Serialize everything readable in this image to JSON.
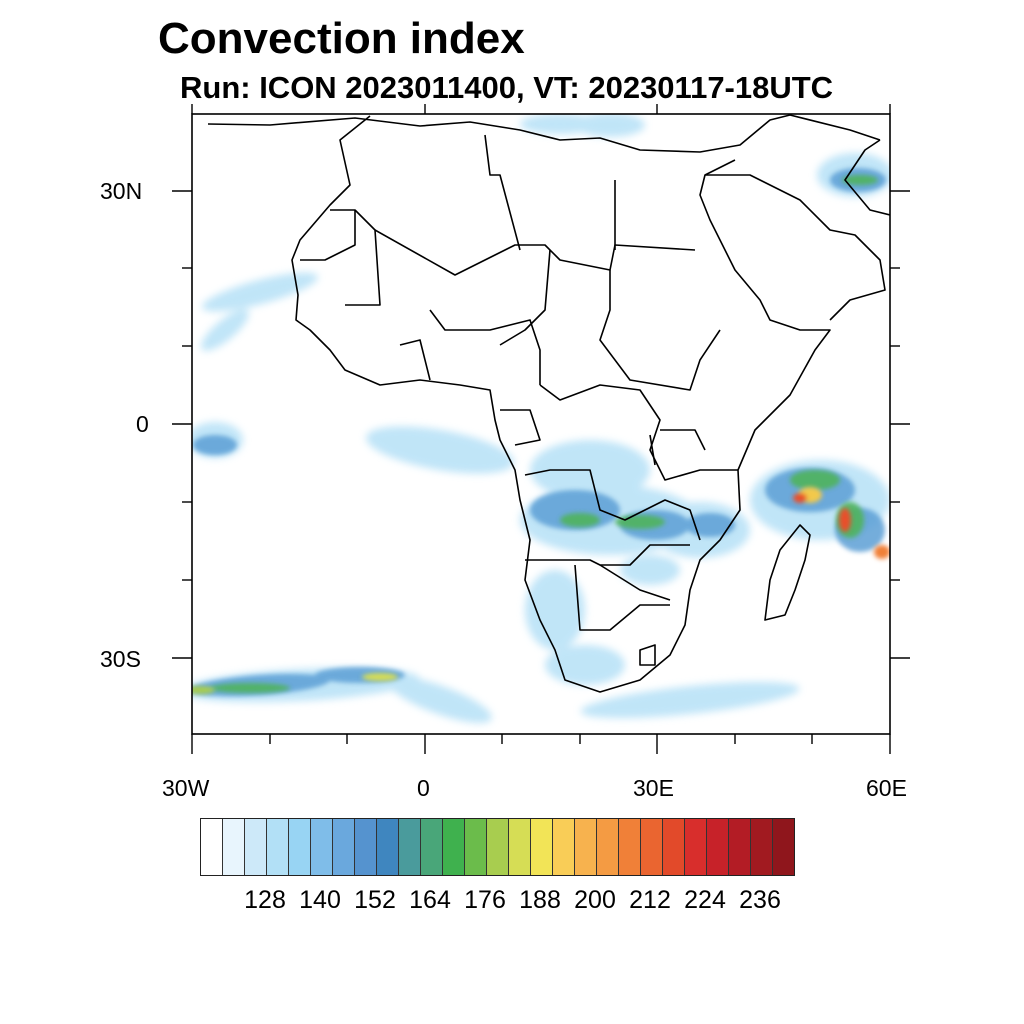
{
  "title": "Convection index",
  "subtitle": "Run: ICON 2023011400,  VT: 20230117-18UTC",
  "axes": {
    "y_labels": [
      "30N",
      "0",
      "30S"
    ],
    "x_labels": [
      "30W",
      "0",
      "30E",
      "60E"
    ]
  },
  "colorbar": {
    "colors": [
      "#ffffff",
      "#e8f5fd",
      "#cde9f9",
      "#b2e0f6",
      "#98d4f3",
      "#7fbde9",
      "#6aa8dd",
      "#5593cf",
      "#3f86bf",
      "#4a9b9c",
      "#49a679",
      "#3fb14e",
      "#6bbc4b",
      "#a8cd4f",
      "#d6dd55",
      "#f2e457",
      "#f9cd57",
      "#f7b24e",
      "#f49b43",
      "#f08038",
      "#ea6530",
      "#e24a2a",
      "#d82e2c",
      "#c72229",
      "#b31c25",
      "#a11a20",
      "#8f161c"
    ],
    "labels": [
      "128",
      "140",
      "152",
      "164",
      "176",
      "188",
      "200",
      "212",
      "224",
      "236"
    ]
  },
  "map_features": {
    "country_borders_icon": "political-borders",
    "convection_field_icon": "convection-shading"
  }
}
